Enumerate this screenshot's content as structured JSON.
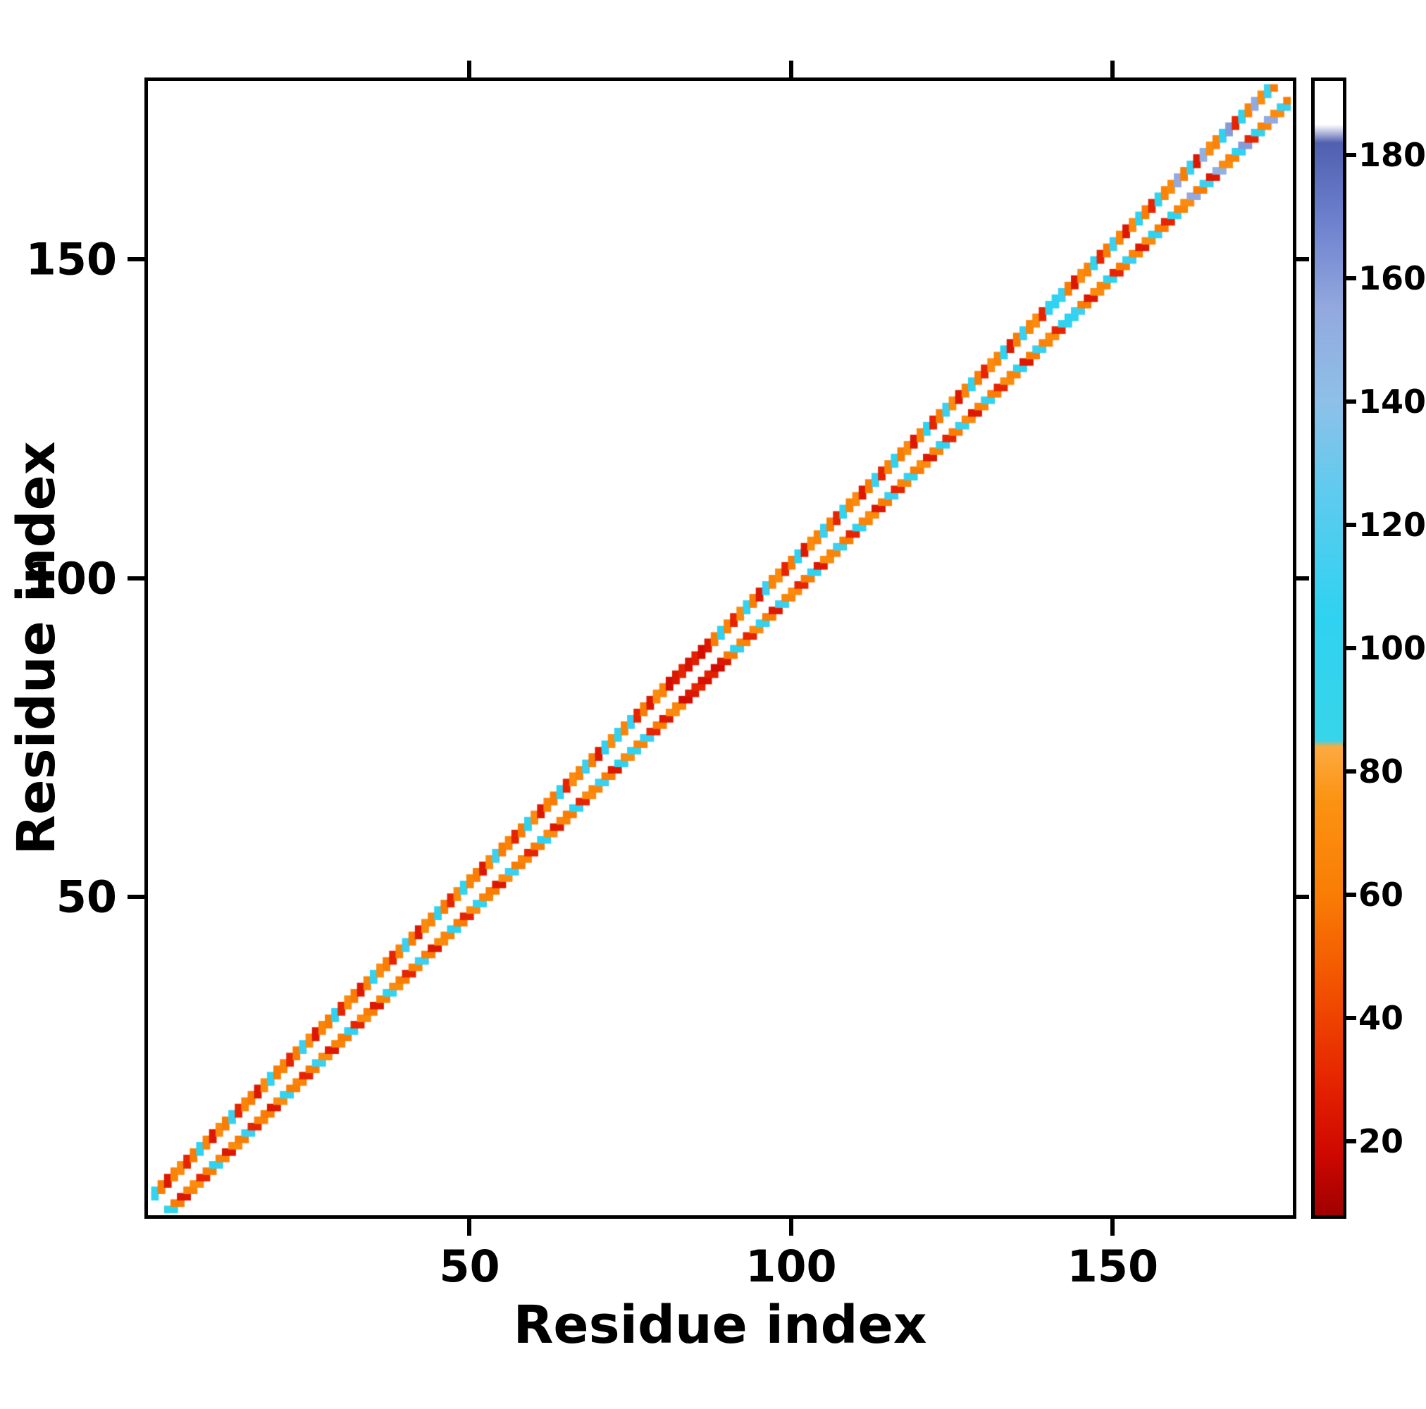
{
  "chart_data": {
    "type": "heatmap",
    "title": "",
    "xlabel": "Residue index",
    "ylabel": "Residue index",
    "x_range": [
      0,
      178
    ],
    "y_range": [
      0,
      178
    ],
    "x_ticks": [
      50,
      100,
      150
    ],
    "y_ticks": [
      50,
      100,
      150
    ],
    "grid": false,
    "background": "#ffffff",
    "axis_color": "#000000",
    "colorbar": {
      "position": "right",
      "range": [
        8,
        192
      ],
      "ticks": [
        20,
        40,
        60,
        80,
        100,
        120,
        140,
        160,
        180
      ],
      "stops": [
        [
          8,
          "#a00000"
        ],
        [
          18,
          "#cf0800"
        ],
        [
          30,
          "#e62500"
        ],
        [
          45,
          "#f25200"
        ],
        [
          60,
          "#f97d05"
        ],
        [
          75,
          "#fc9212"
        ],
        [
          84,
          "#fcaa40"
        ],
        [
          85,
          "#38d5ea"
        ],
        [
          105,
          "#2fd2f0"
        ],
        [
          125,
          "#5ecbef"
        ],
        [
          140,
          "#8ec0e8"
        ],
        [
          155,
          "#93a9df"
        ],
        [
          170,
          "#6b7fcd"
        ],
        [
          182,
          "#5160b0"
        ],
        [
          185,
          "#ffffff"
        ],
        [
          192,
          "#ffffff"
        ]
      ]
    },
    "contacts": {
      "first_residue": 1,
      "offsets": [
        2,
        3
      ],
      "symmetric": true,
      "values": [
        95,
        60,
        25,
        65,
        70,
        30,
        60,
        105,
        65,
        25,
        70,
        60,
        110,
        30,
        65,
        60,
        25,
        70,
        100,
        60,
        65,
        30,
        60,
        110,
        70,
        25,
        65,
        60,
        105,
        30,
        70,
        60,
        25,
        65,
        100,
        70,
        60,
        30,
        65,
        110,
        60,
        25,
        70,
        65,
        105,
        60,
        30,
        70,
        100,
        65,
        60,
        25,
        70,
        110,
        60,
        65,
        30,
        60,
        105,
        70,
        25,
        65,
        60,
        100,
        30,
        70,
        65,
        110,
        60,
        25,
        105,
        70,
        100,
        65,
        110,
        30,
        60,
        25,
        70,
        65,
        20,
        25,
        30,
        22,
        28,
        20,
        25,
        60,
        105,
        65,
        30,
        70,
        100,
        60,
        25,
        110,
        65,
        70,
        30,
        60,
        105,
        25,
        70,
        65,
        110,
        60,
        30,
        100,
        65,
        70,
        25,
        60,
        110,
        30,
        65,
        100,
        60,
        70,
        25,
        65,
        105,
        30,
        60,
        110,
        70,
        25,
        65,
        100,
        60,
        30,
        70,
        65,
        105,
        25,
        60,
        110,
        65,
        70,
        30,
        100,
        105,
        110,
        60,
        25,
        70,
        65,
        100,
        30,
        60,
        110,
        65,
        25,
        70,
        105,
        60,
        30,
        100,
        65,
        70,
        155,
        60,
        110,
        25,
        150,
        70,
        65,
        105,
        160,
        30,
        100,
        65,
        155,
        70,
        110,
        60,
        25
      ]
    }
  }
}
